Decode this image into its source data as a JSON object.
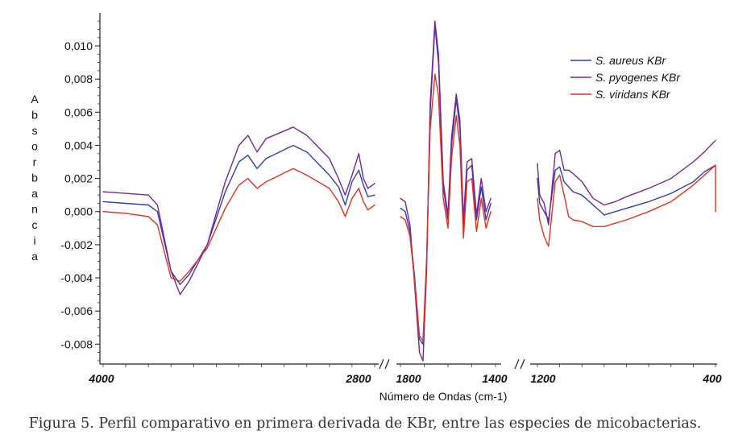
{
  "chart_data": {
    "type": "line",
    "ylabel": "Absorbancia",
    "xlabel": "Número de Ondas (cm-1)",
    "ylim": [
      -0.0092,
      0.0118
    ],
    "y_ticks": [
      "0,010",
      "0,008",
      "0,006",
      "0,004",
      "0,002",
      "0,000",
      "-0,002",
      "-0,004",
      "-0,006",
      "-0,008"
    ],
    "y_tick_values": [
      0.01,
      0.008,
      0.006,
      0.004,
      0.002,
      0.0,
      -0.002,
      -0.004,
      -0.006,
      -0.008
    ],
    "x_tick_labels": [
      "4000",
      "2800",
      "1800",
      "1400",
      "1200",
      "400"
    ],
    "x_reversed": true,
    "axis_breaks": [
      "2800-1800",
      "1400-1200"
    ],
    "legend_position": "top-right",
    "grid": false,
    "series": [
      {
        "name": "S. aureus KBr",
        "color": "#2b3fb8",
        "segments": [
          [
            [
              4000,
              0.0006
            ],
            [
              3900,
              0.0005
            ],
            [
              3800,
              0.0004
            ],
            [
              3760,
              0.0
            ],
            [
              3700,
              -0.0036
            ],
            [
              3660,
              -0.0044
            ],
            [
              3620,
              -0.0038
            ],
            [
              3540,
              -0.002
            ],
            [
              3460,
              0.0012
            ],
            [
              3400,
              0.003
            ],
            [
              3360,
              0.0034
            ],
            [
              3320,
              0.0026
            ],
            [
              3280,
              0.0032
            ],
            [
              3160,
              0.004
            ],
            [
              3100,
              0.0036
            ],
            [
              3000,
              0.0022
            ],
            [
              2960,
              0.0015
            ],
            [
              2930,
              0.0004
            ],
            [
              2900,
              0.0018
            ],
            [
              2870,
              0.0025
            ],
            [
              2850,
              0.0016
            ],
            [
              2830,
              0.0009
            ],
            [
              2800,
              0.001
            ]
          ],
          [
            [
              1800,
              0.0002
            ],
            [
              1780,
              0.0
            ],
            [
              1760,
              -0.0012
            ],
            [
              1740,
              -0.004
            ],
            [
              1720,
              -0.0077
            ],
            [
              1705,
              -0.008
            ],
            [
              1690,
              -0.003
            ],
            [
              1675,
              0.006
            ],
            [
              1655,
              0.0112
            ],
            [
              1640,
              0.009
            ],
            [
              1620,
              0.0015
            ],
            [
              1600,
              -0.0005
            ],
            [
              1585,
              0.004
            ],
            [
              1565,
              0.0068
            ],
            [
              1550,
              0.005
            ],
            [
              1535,
              -0.001
            ],
            [
              1520,
              0.0025
            ],
            [
              1500,
              0.0028
            ],
            [
              1480,
              -0.0005
            ],
            [
              1460,
              0.0015
            ],
            [
              1440,
              -0.0005
            ],
            [
              1420,
              0.0005
            ]
          ],
          [
            [
              1200,
              0.002
            ],
            [
              1190,
              0.0005
            ],
            [
              1170,
              0.0
            ],
            [
              1150,
              -0.0005
            ],
            [
              1120,
              0.0025
            ],
            [
              1100,
              0.0027
            ],
            [
              1080,
              0.0018
            ],
            [
              1060,
              0.0015
            ],
            [
              1040,
              0.0012
            ],
            [
              1000,
              0.001
            ],
            [
              950,
              0.0004
            ],
            [
              900,
              -0.0002
            ],
            [
              850,
              0.0
            ],
            [
              800,
              0.0002
            ],
            [
              700,
              0.0006
            ],
            [
              600,
              0.0011
            ],
            [
              500,
              0.0018
            ],
            [
              450,
              0.0024
            ],
            [
              400,
              0.0028
            ]
          ]
        ]
      },
      {
        "name": "S. pyogenes KBr",
        "color": "#7a2590",
        "segments": [
          [
            [
              4000,
              0.0012
            ],
            [
              3900,
              0.0011
            ],
            [
              3800,
              0.001
            ],
            [
              3760,
              0.0004
            ],
            [
              3700,
              -0.0036
            ],
            [
              3660,
              -0.005
            ],
            [
              3620,
              -0.0042
            ],
            [
              3540,
              -0.002
            ],
            [
              3460,
              0.0018
            ],
            [
              3400,
              0.004
            ],
            [
              3360,
              0.0046
            ],
            [
              3320,
              0.0036
            ],
            [
              3280,
              0.0044
            ],
            [
              3160,
              0.0051
            ],
            [
              3100,
              0.0046
            ],
            [
              3000,
              0.0032
            ],
            [
              2960,
              0.002
            ],
            [
              2930,
              0.001
            ],
            [
              2900,
              0.0022
            ],
            [
              2870,
              0.0035
            ],
            [
              2850,
              0.002
            ],
            [
              2830,
              0.0014
            ],
            [
              2800,
              0.0017
            ]
          ],
          [
            [
              1800,
              0.0008
            ],
            [
              1780,
              0.0006
            ],
            [
              1760,
              -0.0008
            ],
            [
              1740,
              -0.0045
            ],
            [
              1720,
              -0.0085
            ],
            [
              1705,
              -0.009
            ],
            [
              1690,
              -0.0035
            ],
            [
              1675,
              0.0065
            ],
            [
              1655,
              0.0115
            ],
            [
              1640,
              0.0095
            ],
            [
              1620,
              0.0018
            ],
            [
              1600,
              -0.0002
            ],
            [
              1585,
              0.0045
            ],
            [
              1565,
              0.0071
            ],
            [
              1550,
              0.0055
            ],
            [
              1535,
              -0.0005
            ],
            [
              1520,
              0.003
            ],
            [
              1500,
              0.0032
            ],
            [
              1480,
              -0.0002
            ],
            [
              1460,
              0.002
            ],
            [
              1440,
              0.0
            ],
            [
              1420,
              0.0008
            ]
          ],
          [
            [
              1200,
              0.0029
            ],
            [
              1190,
              0.001
            ],
            [
              1170,
              0.0005
            ],
            [
              1150,
              -0.0008
            ],
            [
              1120,
              0.0035
            ],
            [
              1100,
              0.0037
            ],
            [
              1080,
              0.0025
            ],
            [
              1060,
              0.0025
            ],
            [
              1040,
              0.0023
            ],
            [
              1000,
              0.0018
            ],
            [
              950,
              0.0008
            ],
            [
              900,
              0.0004
            ],
            [
              850,
              0.0006
            ],
            [
              800,
              0.0009
            ],
            [
              700,
              0.0014
            ],
            [
              600,
              0.002
            ],
            [
              500,
              0.003
            ],
            [
              450,
              0.0036
            ],
            [
              400,
              0.0043
            ]
          ]
        ]
      },
      {
        "name": "S. viridans KBr",
        "color": "#e0321e",
        "segments": [
          [
            [
              4000,
              0.0
            ],
            [
              3900,
              -0.0001
            ],
            [
              3800,
              -0.0003
            ],
            [
              3760,
              -0.0008
            ],
            [
              3700,
              -0.004
            ],
            [
              3660,
              -0.0042
            ],
            [
              3620,
              -0.0036
            ],
            [
              3540,
              -0.0022
            ],
            [
              3460,
              0.0002
            ],
            [
              3400,
              0.0016
            ],
            [
              3360,
              0.002
            ],
            [
              3320,
              0.0014
            ],
            [
              3280,
              0.0018
            ],
            [
              3160,
              0.0026
            ],
            [
              3100,
              0.0022
            ],
            [
              3000,
              0.0014
            ],
            [
              2960,
              0.0006
            ],
            [
              2930,
              -0.0003
            ],
            [
              2900,
              0.0008
            ],
            [
              2870,
              0.0014
            ],
            [
              2850,
              0.0006
            ],
            [
              2830,
              0.0001
            ],
            [
              2800,
              0.0004
            ]
          ],
          [
            [
              1800,
              -0.0003
            ],
            [
              1780,
              -0.0005
            ],
            [
              1760,
              -0.0015
            ],
            [
              1740,
              -0.0042
            ],
            [
              1720,
              -0.0075
            ],
            [
              1705,
              -0.0078
            ],
            [
              1690,
              -0.0028
            ],
            [
              1675,
              0.005
            ],
            [
              1655,
              0.0083
            ],
            [
              1640,
              0.007
            ],
            [
              1620,
              0.0008
            ],
            [
              1600,
              -0.001
            ],
            [
              1585,
              0.0032
            ],
            [
              1565,
              0.0058
            ],
            [
              1550,
              0.004
            ],
            [
              1535,
              -0.0016
            ],
            [
              1520,
              0.0018
            ],
            [
              1500,
              0.002
            ],
            [
              1480,
              -0.0012
            ],
            [
              1460,
              0.0008
            ],
            [
              1440,
              -0.001
            ],
            [
              1420,
              0.0
            ]
          ],
          [
            [
              1200,
              0.0008
            ],
            [
              1190,
              -0.0005
            ],
            [
              1170,
              -0.0015
            ],
            [
              1150,
              -0.0021
            ],
            [
              1120,
              0.0018
            ],
            [
              1100,
              0.0022
            ],
            [
              1080,
              0.001
            ],
            [
              1060,
              -0.0003
            ],
            [
              1040,
              -0.0005
            ],
            [
              1000,
              -0.0006
            ],
            [
              950,
              -0.0009
            ],
            [
              900,
              -0.0009
            ],
            [
              850,
              -0.0007
            ],
            [
              800,
              -0.0005
            ],
            [
              700,
              0.0
            ],
            [
              600,
              0.0006
            ],
            [
              500,
              0.0016
            ],
            [
              450,
              0.0022
            ],
            [
              400,
              0.0028
            ],
            [
              400,
              0.0
            ]
          ]
        ]
      }
    ]
  },
  "caption": "Figura 5. Perfil comparativo en primera derivada de KBr, entre las especies de micobacterias."
}
